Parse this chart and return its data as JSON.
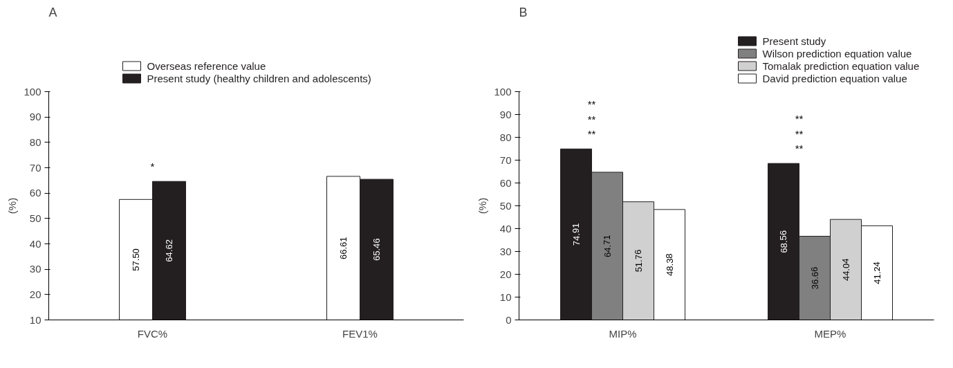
{
  "chart_data": [
    {
      "type": "bar",
      "ylabel": "(%)",
      "categories": [
        "FVC%",
        "FEV1%"
      ],
      "ylim": [
        10,
        100
      ],
      "yticks": [
        10,
        20,
        30,
        40,
        50,
        60,
        70,
        80,
        90,
        100
      ],
      "legend": "top",
      "grid": false,
      "series": [
        {
          "name": "Overseas reference value",
          "color": "#ffffff",
          "values": [
            57.5,
            66.61
          ],
          "value_labels": [
            "57.50",
            "66.61"
          ]
        },
        {
          "name": "Present study (healthy children and adolescents)",
          "color": "#231f20",
          "values": [
            64.62,
            65.46
          ],
          "value_labels": [
            "64.62",
            "65.46"
          ]
        }
      ],
      "annotations": [
        "A",
        "*"
      ]
    },
    {
      "type": "bar",
      "ylabel": "(%)",
      "categories": [
        "MIP%",
        "MEP%"
      ],
      "ylim": [
        0,
        100
      ],
      "yticks": [
        0,
        10,
        20,
        30,
        40,
        50,
        60,
        70,
        80,
        90,
        100
      ],
      "legend": "top right",
      "grid": false,
      "series": [
        {
          "name": "Present study",
          "color": "#231f20",
          "values": [
            74.91,
            68.56
          ],
          "value_labels": [
            "74.91",
            "68.56"
          ]
        },
        {
          "name": "Wilson prediction equation value",
          "color": "#808080",
          "values": [
            64.71,
            36.66
          ],
          "value_labels": [
            "64.71",
            "36.66"
          ]
        },
        {
          "name": "Tomalak prediction equation value",
          "color": "#d0d0d0",
          "values": [
            51.76,
            44.04
          ],
          "value_labels": [
            "51.76",
            "44.04"
          ]
        },
        {
          "name": "David prediction equation value",
          "color": "#ffffff",
          "values": [
            48.38,
            41.24
          ],
          "value_labels": [
            "48.38",
            "41.24"
          ]
        }
      ],
      "annotations": [
        "B",
        "**",
        "**",
        "**",
        "**",
        "**",
        "**"
      ]
    }
  ]
}
